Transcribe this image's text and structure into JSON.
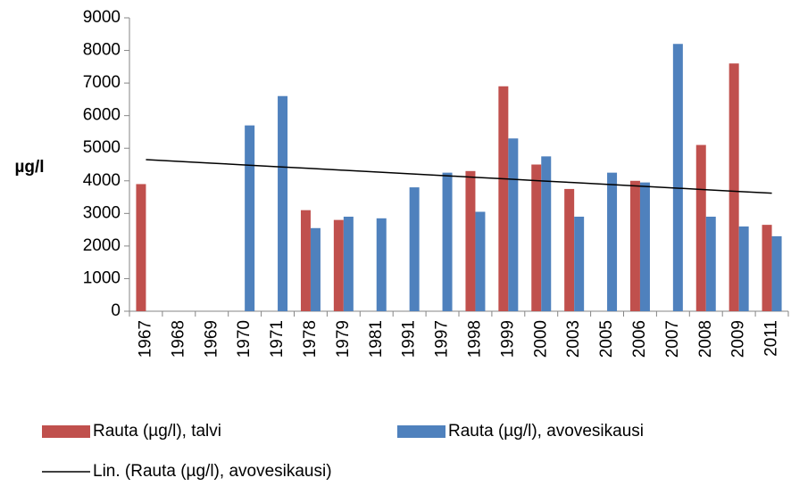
{
  "chart_data": {
    "type": "bar",
    "y_label": "µg/l",
    "categories": [
      "1967",
      "1968",
      "1969",
      "1970",
      "1971",
      "1978",
      "1979",
      "1981",
      "1991",
      "1997",
      "1998",
      "1999",
      "2000",
      "2003",
      "2005",
      "2006",
      "2007",
      "2008",
      "2009",
      "2011"
    ],
    "series": [
      {
        "name": "Rauta (µg/l), talvi",
        "color": "#c0504d",
        "values": [
          3900,
          null,
          null,
          null,
          null,
          3100,
          2800,
          null,
          null,
          null,
          4300,
          6900,
          4500,
          3750,
          null,
          4000,
          null,
          5100,
          7600,
          2650
        ]
      },
      {
        "name": "Rauta (µg/l), avovesikausi",
        "color": "#4f81bd",
        "values": [
          null,
          null,
          null,
          5700,
          6600,
          2550,
          2900,
          2850,
          3800,
          4250,
          3050,
          5300,
          4750,
          2900,
          4250,
          3950,
          8200,
          2900,
          2600,
          2300
        ]
      },
      {
        "name": "Lin. (Rauta (µg/l), avovesikausi)",
        "type": "line",
        "color": "#000000",
        "values": [
          4650,
          4596,
          4542,
          4487,
          4433,
          4379,
          4325,
          4271,
          4216,
          4162,
          4108,
          4054,
          3999,
          3945,
          3891,
          3837,
          3783,
          3728,
          3674,
          3620
        ]
      }
    ],
    "ylim": [
      0,
      9000
    ],
    "yticks": [
      0,
      1000,
      2000,
      3000,
      4000,
      5000,
      6000,
      7000,
      8000,
      9000
    ]
  }
}
